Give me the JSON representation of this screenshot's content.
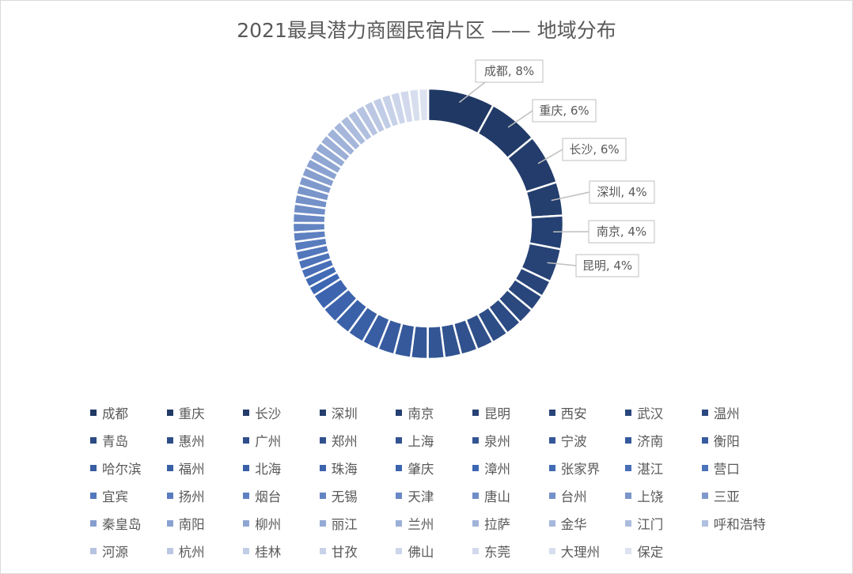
{
  "chart_data": {
    "type": "pie",
    "variant": "donut",
    "title": "2021最具潜力商圈民宿片区 —— 地域分布",
    "categories": [
      "成都",
      "重庆",
      "长沙",
      "深圳",
      "南京",
      "昆明",
      "西安",
      "武汉",
      "温州",
      "青岛",
      "惠州",
      "广州",
      "郑州",
      "上海",
      "泉州",
      "宁波",
      "济南",
      "衡阳",
      "哈尔滨",
      "福州",
      "北海",
      "珠海",
      "肇庆",
      "漳州",
      "张家界",
      "湛江",
      "营口",
      "宜宾",
      "扬州",
      "烟台",
      "无锡",
      "天津",
      "唐山",
      "台州",
      "上饶",
      "三亚",
      "秦皇岛",
      "南阳",
      "柳州",
      "丽江",
      "兰州",
      "拉萨",
      "金华",
      "江门",
      "呼和浩特",
      "河源",
      "杭州",
      "桂林",
      "甘孜",
      "佛山",
      "东莞",
      "大理州",
      "保定"
    ],
    "values": [
      8,
      6,
      6,
      4,
      4,
      4,
      2,
      2,
      2,
      2,
      2,
      2,
      2,
      2,
      2,
      2,
      2,
      2,
      2,
      2,
      2,
      2,
      2,
      1.13,
      1.13,
      1.13,
      1.13,
      1.13,
      1.13,
      1.13,
      1.13,
      1.13,
      1.13,
      1.13,
      1.13,
      1.13,
      1.13,
      1.13,
      1.13,
      1.13,
      1.13,
      1.13,
      1.13,
      1.13,
      1.13,
      1.13,
      1.13,
      1.13,
      1.13,
      1.13,
      1.13,
      1.13,
      1.13
    ],
    "unit": "%",
    "data_labels": [
      {
        "category": "成都",
        "text": "成都, 8%"
      },
      {
        "category": "重庆",
        "text": "重庆, 6%"
      },
      {
        "category": "长沙",
        "text": "长沙, 6%"
      },
      {
        "category": "深圳",
        "text": "深圳, 4%"
      },
      {
        "category": "南京",
        "text": "南京, 4%"
      },
      {
        "category": "昆明",
        "text": "昆明, 4%"
      }
    ],
    "legend_placement": "bottom",
    "colors": {
      "dark": "#203864",
      "mid": "#3f68b4",
      "light": "#dde2f0"
    }
  }
}
